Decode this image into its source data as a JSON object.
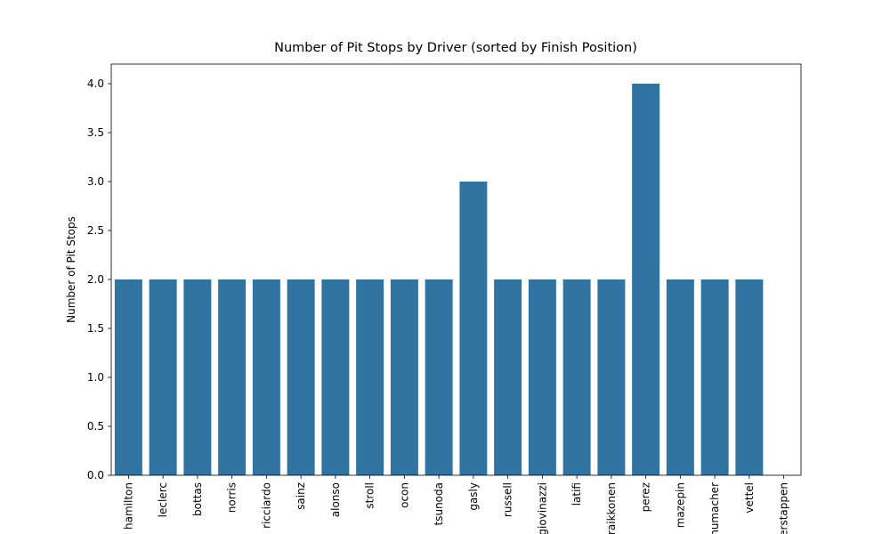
{
  "chart_data": {
    "type": "bar",
    "title": "Number of Pit Stops by Driver (sorted by Finish Position)",
    "y_label": "Number of Pit Stops",
    "categories": [
      "hamilton",
      "leclerc",
      "bottas",
      "norris",
      "ricciardo",
      "sainz",
      "alonso",
      "stroll",
      "ocon",
      "tsunoda",
      "gasly",
      "russell",
      "giovinazzi",
      "latifi",
      "raikkonen",
      "perez",
      "mazepin",
      "schumacher",
      "vettel",
      "verstappen"
    ],
    "values": [
      2,
      2,
      2,
      2,
      2,
      2,
      2,
      2,
      2,
      2,
      3,
      2,
      2,
      2,
      2,
      4,
      2,
      2,
      2,
      0
    ],
    "color": "#3274a1",
    "ylim": [
      0,
      4.2
    ],
    "yticks": [
      {
        "value": 0,
        "label": "0.0"
      },
      0.5,
      {
        "value": 1,
        "label": "1.0"
      },
      1.5,
      {
        "value": 2,
        "label": "2.0"
      },
      2.5,
      {
        "value": 3,
        "label": "3.0"
      },
      3.5,
      {
        "value": 4,
        "label": "4.0"
      }
    ],
    "grid": false
  }
}
